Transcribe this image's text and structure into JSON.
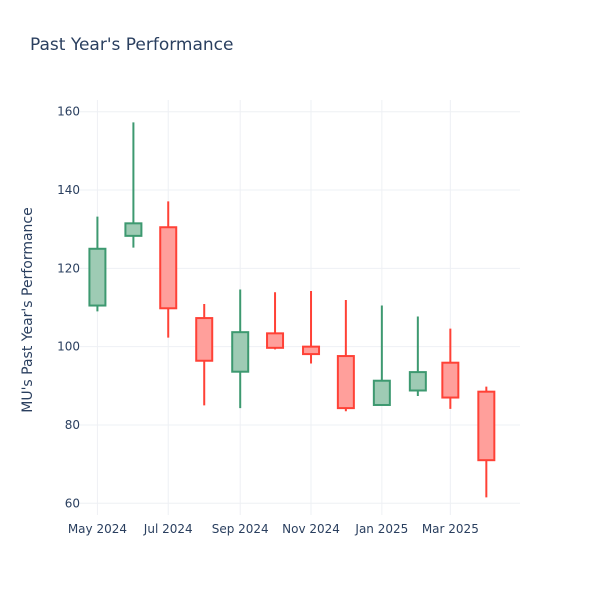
{
  "chart_data": {
    "type": "candlestick",
    "title": "Past Year's Performance",
    "ylabel": "MU's Past Year's Performance",
    "xlabel": "",
    "ylim": [
      57,
      163
    ],
    "grid": true,
    "x_range": [
      "2024-04-16",
      "2025-04-30"
    ],
    "x_ticks": [
      {
        "date": "2024-05-01",
        "label": "May 2024"
      },
      {
        "date": "2024-07-01",
        "label": "Jul 2024"
      },
      {
        "date": "2024-09-01",
        "label": "Sep 2024"
      },
      {
        "date": "2024-11-01",
        "label": "Nov 2024"
      },
      {
        "date": "2025-01-01",
        "label": "Jan 2025"
      },
      {
        "date": "2025-03-01",
        "label": "Mar 2025"
      }
    ],
    "y_ticks": [
      60,
      80,
      100,
      120,
      140,
      160
    ],
    "colors": {
      "increasing_line": "#3d9970",
      "increasing_fill": "#9ecbb4",
      "decreasing_line": "#ff4136",
      "decreasing_fill": "#ff9f9b"
    },
    "candles": [
      {
        "date": "2024-05-01",
        "open": 110.5,
        "high": 133.2,
        "low": 109.0,
        "close": 125.0
      },
      {
        "date": "2024-06-01",
        "open": 128.3,
        "high": 157.3,
        "low": 125.3,
        "close": 131.5
      },
      {
        "date": "2024-07-01",
        "open": 130.5,
        "high": 137.1,
        "low": 102.3,
        "close": 109.8
      },
      {
        "date": "2024-08-01",
        "open": 107.3,
        "high": 110.9,
        "low": 85.0,
        "close": 96.4
      },
      {
        "date": "2024-09-01",
        "open": 93.6,
        "high": 114.6,
        "low": 84.3,
        "close": 103.7
      },
      {
        "date": "2024-10-01",
        "open": 103.4,
        "high": 113.9,
        "low": 99.3,
        "close": 99.7
      },
      {
        "date": "2024-11-01",
        "open": 100.0,
        "high": 114.2,
        "low": 95.7,
        "close": 98.1
      },
      {
        "date": "2024-12-01",
        "open": 97.6,
        "high": 111.9,
        "low": 83.5,
        "close": 84.3
      },
      {
        "date": "2025-01-01",
        "open": 85.1,
        "high": 110.5,
        "low": 85.1,
        "close": 91.3
      },
      {
        "date": "2025-02-01",
        "open": 88.8,
        "high": 107.7,
        "low": 87.4,
        "close": 93.5
      },
      {
        "date": "2025-03-01",
        "open": 95.9,
        "high": 104.6,
        "low": 84.1,
        "close": 87.0
      },
      {
        "date": "2025-04-01",
        "open": 88.5,
        "high": 89.8,
        "low": 61.5,
        "close": 71.0
      }
    ]
  }
}
